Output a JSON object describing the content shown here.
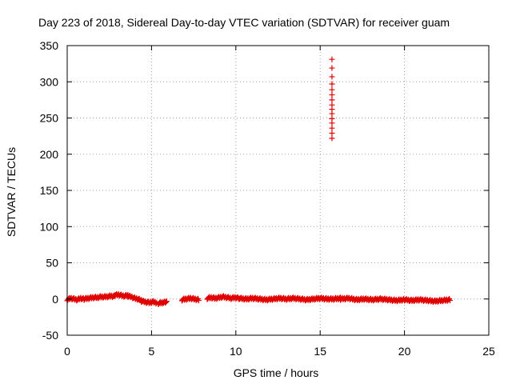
{
  "chart_data": {
    "type": "scatter",
    "title": "Day 223 of 2018, Sidereal Day-to-day VTEC variation (SDTVAR) for receiver guam",
    "xlabel": "GPS time / hours",
    "ylabel": "SDTVAR / TECUs",
    "xlim": [
      0,
      25
    ],
    "ylim": [
      -50,
      350
    ],
    "xticks": [
      0,
      5,
      10,
      15,
      20,
      25
    ],
    "yticks": [
      -50,
      0,
      50,
      100,
      150,
      200,
      250,
      300,
      350
    ],
    "xtick_labels": [
      "0",
      "5",
      "10",
      "15",
      "20",
      "25"
    ],
    "ytick_labels": [
      "-50",
      "0",
      "50",
      "100",
      "150",
      "200",
      "250",
      "300",
      "350"
    ],
    "grid": true,
    "marker": "+",
    "color": "#e00000",
    "series": [
      {
        "name": "SDTVAR",
        "segments": [
          {
            "x_range": [
              0.0,
              1.0
            ],
            "y": [
              -1,
              1,
              0,
              -1,
              1,
              0
            ]
          },
          {
            "x_range": [
              1.0,
              2.8
            ],
            "y": [
              0,
              1,
              2,
              2,
              3,
              3,
              4,
              4
            ]
          },
          {
            "x_range": [
              2.8,
              3.6
            ],
            "y": [
              5,
              6,
              5,
              4,
              5
            ]
          },
          {
            "x_range": [
              3.6,
              4.4
            ],
            "y": [
              4,
              3,
              1,
              0,
              -2
            ]
          },
          {
            "x_range": [
              4.4,
              5.3
            ],
            "y": [
              -3,
              -4,
              -5,
              -4,
              -5
            ]
          },
          {
            "x_range": [
              5.4,
              5.9
            ],
            "y": [
              -6,
              -5,
              -4
            ]
          },
          {
            "x_range": [
              6.8,
              7.8
            ],
            "y": [
              -1,
              0,
              1,
              0,
              -1
            ]
          },
          {
            "x_range": [
              8.3,
              10.2
            ],
            "y": [
              1,
              2,
              1,
              2,
              3,
              2,
              1,
              2,
              1
            ]
          },
          {
            "x_range": [
              10.2,
              13.0
            ],
            "y": [
              1,
              0,
              1,
              0,
              -1,
              0,
              1,
              0
            ]
          },
          {
            "x_range": [
              13.0,
              16.2
            ],
            "y": [
              0,
              1,
              0,
              -1,
              0,
              1,
              0,
              0,
              1
            ]
          },
          {
            "x_range": [
              16.2,
              20.0
            ],
            "y": [
              0,
              1,
              -1,
              0,
              -1,
              0,
              -1,
              -2,
              -1
            ]
          },
          {
            "x_range": [
              20.0,
              22.7
            ],
            "y": [
              -1,
              -2,
              -1,
              -2,
              -3,
              -2,
              -1
            ]
          }
        ],
        "spike": {
          "x": 15.7,
          "y": [
            222,
            229,
            236,
            243,
            249,
            256,
            262,
            268,
            275,
            282,
            289,
            297,
            307,
            319,
            331
          ]
        }
      }
    ]
  }
}
